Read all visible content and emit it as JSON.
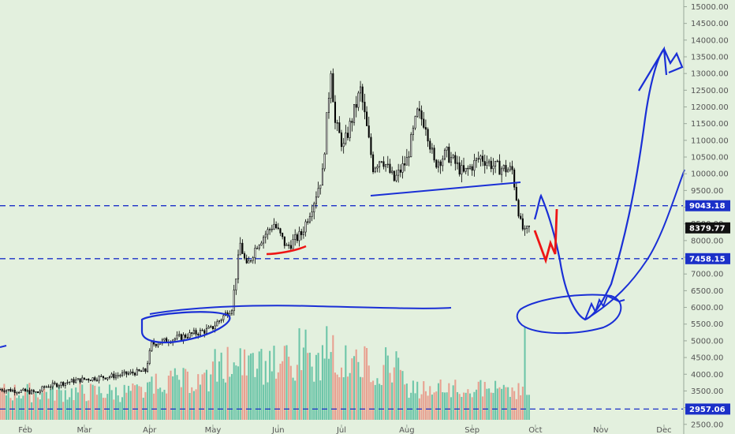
{
  "chart_data": {
    "type": "candlestick",
    "title": "",
    "ylim": [
      2400,
      15200
    ],
    "y_ticks": [
      2500,
      3000,
      3500,
      4000,
      4500,
      5000,
      5500,
      6000,
      6500,
      7000,
      7500,
      8000,
      8500,
      9000,
      9500,
      10000,
      10500,
      11000,
      11500,
      12000,
      12500,
      13000,
      13500,
      14000,
      14500,
      15000
    ],
    "y_tick_labels": [
      "2500.00",
      "3000.00",
      "3500.00",
      "4000.00",
      "4500.00",
      "5000.00",
      "5500.00",
      "6000.00",
      "6500.00",
      "7000.00",
      "7500.00",
      "8000.00",
      "8500.00",
      "9000.00",
      "9500.00",
      "10000.00",
      "10500.00",
      "11000.00",
      "11500.00",
      "12000.00",
      "12500.00",
      "13000.00",
      "13500.00",
      "14000.00",
      "14500.00",
      "15000.00"
    ],
    "x_labels": [
      "Feb",
      "Mar",
      "Apr",
      "May",
      "Jun",
      "Jul",
      "Aug",
      "Sep",
      "Oct",
      "Nov",
      "Dec"
    ],
    "x_start": "2019-01-20",
    "x_end": "2019-12-10",
    "price_path": [
      [
        "2019-01-20",
        3550
      ],
      [
        "2019-02-07",
        3450
      ],
      [
        "2019-02-10",
        3620
      ],
      [
        "2019-02-24",
        3800
      ],
      [
        "2019-03-01",
        3850
      ],
      [
        "2019-03-15",
        3950
      ],
      [
        "2019-03-30",
        4100
      ],
      [
        "2019-04-02",
        4900
      ],
      [
        "2019-04-15",
        5100
      ],
      [
        "2019-04-30",
        5350
      ],
      [
        "2019-05-10",
        6000
      ],
      [
        "2019-05-14",
        7900
      ],
      [
        "2019-05-17",
        7200
      ],
      [
        "2019-05-22",
        7900
      ],
      [
        "2019-05-30",
        8500
      ],
      [
        "2019-06-05",
        7800
      ],
      [
        "2019-06-12",
        8200
      ],
      [
        "2019-06-18",
        9200
      ],
      [
        "2019-06-22",
        10000
      ],
      [
        "2019-06-26",
        13200
      ],
      [
        "2019-06-28",
        11500
      ],
      [
        "2019-07-02",
        10800
      ],
      [
        "2019-07-10",
        12500
      ],
      [
        "2019-07-16",
        10200
      ],
      [
        "2019-07-20",
        10500
      ],
      [
        "2019-07-26",
        9800
      ],
      [
        "2019-08-01",
        10400
      ],
      [
        "2019-08-06",
        11800
      ],
      [
        "2019-08-10",
        11500
      ],
      [
        "2019-08-14",
        10300
      ],
      [
        "2019-08-20",
        10600
      ],
      [
        "2019-08-28",
        10000
      ],
      [
        "2019-09-05",
        10500
      ],
      [
        "2019-09-12",
        10200
      ],
      [
        "2019-09-20",
        10100
      ],
      [
        "2019-09-24",
        8500
      ],
      [
        "2019-09-26",
        8200
      ],
      [
        "2019-09-28",
        8380
      ]
    ],
    "volume_range": [
      0,
      3600
    ],
    "horizontal_levels": [
      {
        "value": 9043.18,
        "label": "9043.18"
      },
      {
        "value": 7458.15,
        "label": "7458.15"
      },
      {
        "value": 2957.06,
        "label": "2957.06"
      }
    ],
    "last_price": {
      "value": 8379.77,
      "label": "8379.77"
    },
    "colors": {
      "background": "#e3f0de",
      "candle": "#000000",
      "volume_up": "#6cc5a8",
      "volume_down": "#e8a090",
      "level_line": "#1b30c8",
      "drawing_blue": "#1a2fd6",
      "drawing_red": "#ee1515",
      "tag_bg": "#1b30c8",
      "last_tag_bg": "#111111"
    }
  }
}
